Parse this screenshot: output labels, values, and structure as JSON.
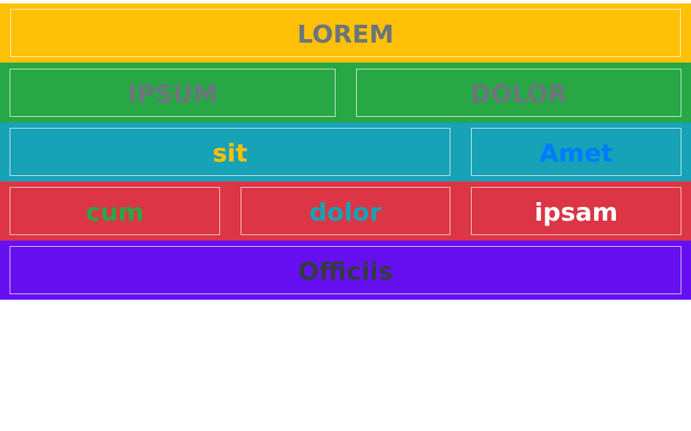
{
  "rows": [
    {
      "background": "#ffc107",
      "cells": [
        {
          "label": "LOREM",
          "color": "#6c757d"
        }
      ]
    },
    {
      "background": "#28a745",
      "cells": [
        {
          "label": "IPSUM",
          "color": "#6c757d"
        },
        {
          "label": "DOLOR",
          "color": "#6c757d"
        }
      ]
    },
    {
      "background": "#17a2b8",
      "cells": [
        {
          "label": "sit",
          "color": "#ffc107"
        },
        {
          "label": "Amet",
          "color": "#007bff"
        }
      ]
    },
    {
      "background": "#dc3545",
      "cells": [
        {
          "label": "cum",
          "color": "#28a745"
        },
        {
          "label": "dolor",
          "color": "#17a2b8"
        },
        {
          "label": "ipsam",
          "color": "#ffffff"
        }
      ]
    },
    {
      "background": "#6610f2",
      "cells": [
        {
          "label": "Officiis",
          "color": "#343a40"
        }
      ]
    }
  ]
}
